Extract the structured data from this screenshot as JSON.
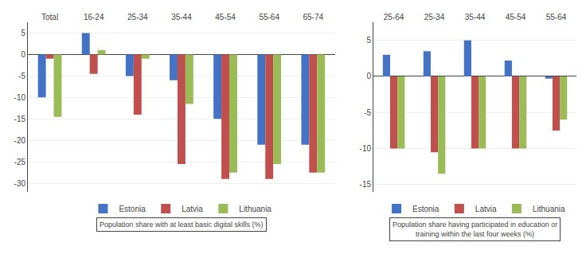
{
  "chart_data": [
    {
      "type": "bar",
      "categories": [
        "Total",
        "16-24",
        "25-34",
        "35-44",
        "45-54",
        "55-64",
        "65-74"
      ],
      "series": [
        {
          "name": "Estonia",
          "color": "#4472C4",
          "values": [
            -10,
            5,
            -5,
            -6,
            -15,
            -21,
            -21
          ]
        },
        {
          "name": "Latvia",
          "color": "#C0504D",
          "values": [
            -1,
            -4.5,
            -14,
            -25.5,
            -29,
            -29,
            -27.5
          ]
        },
        {
          "name": "Lithuania",
          "color": "#9BBB59",
          "values": [
            -14.5,
            1,
            -1,
            -11.5,
            -27.5,
            -25.5,
            -27.5
          ]
        }
      ],
      "ylim": [
        -32,
        7.5
      ],
      "yticks": [
        5,
        0,
        -5,
        -10,
        -15,
        -20,
        -25,
        -30
      ],
      "xlabel": "Population share with at least basic digital skills (%)",
      "grid": true,
      "legend": "bottom"
    },
    {
      "type": "bar",
      "categories": [
        "25-64",
        "25-34",
        "35-44",
        "45-54",
        "55-64"
      ],
      "series": [
        {
          "name": "Estonia",
          "color": "#4472C4",
          "values": [
            3,
            3.5,
            5,
            2.2,
            -0.3
          ]
        },
        {
          "name": "Latvia",
          "color": "#C0504D",
          "values": [
            -10,
            -10.5,
            -10,
            -10,
            -7.5
          ]
        },
        {
          "name": "Lithuania",
          "color": "#9BBB59",
          "values": [
            -10,
            -13.5,
            -10,
            -10,
            -6
          ]
        }
      ],
      "ylim": [
        -16,
        7.5
      ],
      "yticks": [
        5,
        0,
        -5,
        -10,
        -15
      ],
      "xlabel": "Population share having participated in education or\ntraining within the last four weeks (%)",
      "grid": true,
      "legend": "bottom"
    }
  ]
}
